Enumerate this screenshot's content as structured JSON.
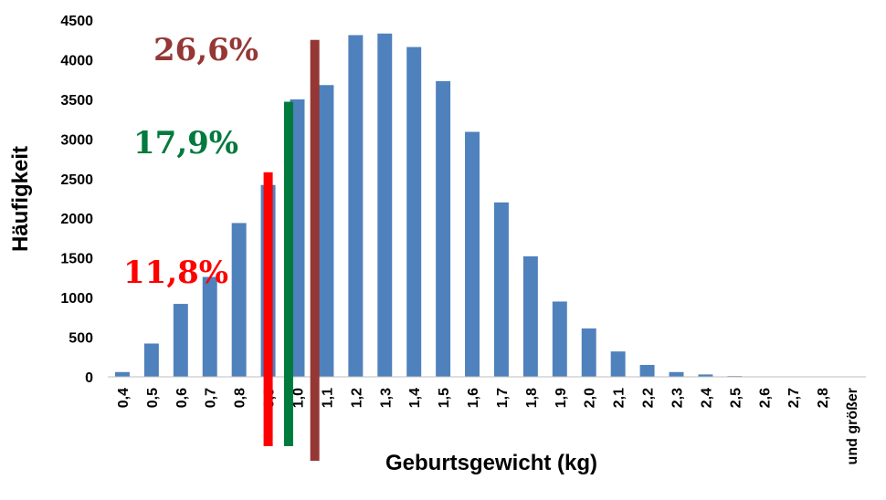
{
  "chart_data": {
    "type": "bar",
    "title": "",
    "xlabel": "Geburtsgewicht (kg)",
    "ylabel": "Häufigkeit",
    "ylim": [
      0,
      4500
    ],
    "yticks": [
      0,
      500,
      1000,
      1500,
      2000,
      2500,
      3000,
      3500,
      4000,
      4500
    ],
    "grid": false,
    "legend": "none",
    "bar_color": "#4F81BD",
    "categories": [
      "0,4",
      "0,5",
      "0,6",
      "0,7",
      "0,8",
      "0,9",
      "1,0",
      "1,1",
      "1,2",
      "1,3",
      "1,4",
      "1,5",
      "1,6",
      "1,7",
      "1,8",
      "1,9",
      "2,0",
      "2,1",
      "2,2",
      "2,3",
      "2,4",
      "2,5",
      "2,6",
      "2,7",
      "2,8",
      "und größer"
    ],
    "values": [
      60,
      420,
      920,
      1260,
      1940,
      2420,
      3500,
      3680,
      4310,
      4330,
      4160,
      3730,
      3090,
      2200,
      1520,
      950,
      610,
      320,
      150,
      60,
      30,
      10,
      5,
      5,
      5,
      0
    ],
    "markers": [
      {
        "color": "#FF0000",
        "cat_index": 5.0,
        "top": 2580,
        "annotation": "11,8%"
      },
      {
        "color": "#007A3D",
        "cat_index": 5.7,
        "top": 3470,
        "annotation": "17,9%"
      },
      {
        "color": "#953735",
        "cat_index": 6.6,
        "top": 4250,
        "annotation": "26,6%"
      }
    ]
  }
}
